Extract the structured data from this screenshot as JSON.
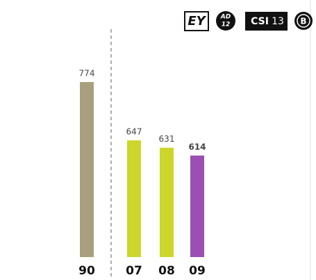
{
  "badges": {
    "ey": "EY",
    "ad": "AD",
    "ad_num": "12",
    "csi": "CSI",
    "csi_num": "13",
    "b": "B"
  },
  "chart_data": {
    "type": "bar",
    "categories": [
      "90",
      "07",
      "08",
      "09"
    ],
    "values": [
      774,
      647,
      631,
      614
    ],
    "colors": [
      "#a89f7c",
      "#cdd62a",
      "#cdd62a",
      "#9b4fb4"
    ],
    "ylim": [
      393,
      889
    ]
  }
}
